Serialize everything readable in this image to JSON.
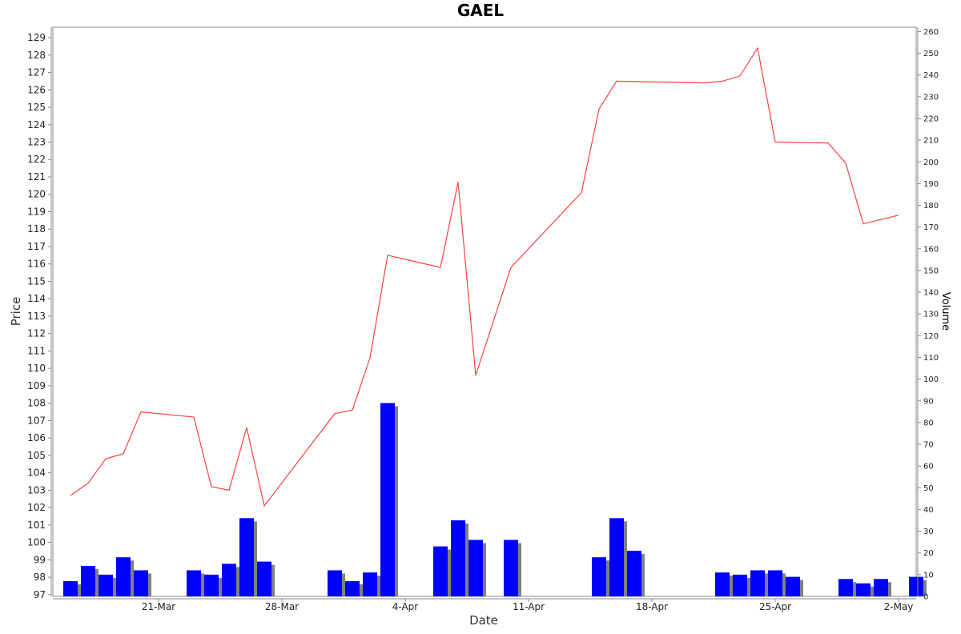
{
  "chart_data": {
    "type": "line+bar",
    "title": "GAEL",
    "xlabel": "Date",
    "ylabel": "Price",
    "y2label": "Volume",
    "ylim": [
      96.9,
      129.6
    ],
    "y2lim": [
      0,
      262
    ],
    "yticks": [
      97,
      98,
      99,
      100,
      101,
      102,
      103,
      104,
      105,
      106,
      107,
      108,
      109,
      110,
      111,
      112,
      113,
      114,
      115,
      116,
      117,
      118,
      119,
      120,
      121,
      122,
      123,
      124,
      125,
      126,
      127,
      128,
      129
    ],
    "y2ticks": [
      0,
      10,
      20,
      30,
      40,
      50,
      60,
      70,
      80,
      90,
      100,
      110,
      120,
      130,
      140,
      150,
      160,
      170,
      180,
      190,
      200,
      210,
      220,
      230,
      240,
      250,
      260
    ],
    "xrange": [
      "2019-03-15",
      "2019-05-03"
    ],
    "xticks": [
      {
        "date": "2019-03-21",
        "label": "21-Mar"
      },
      {
        "date": "2019-03-28",
        "label": "28-Mar"
      },
      {
        "date": "2019-04-04",
        "label": "4-Apr"
      },
      {
        "date": "2019-04-11",
        "label": "11-Apr"
      },
      {
        "date": "2019-04-18",
        "label": "18-Apr"
      },
      {
        "date": "2019-04-25",
        "label": "25-Apr"
      },
      {
        "date": "2019-05-02",
        "label": "2-May"
      }
    ],
    "grid": false,
    "line_color": "#ff4040",
    "bar_color": "#0000ff",
    "bar_shadow_color": "#808080",
    "series": [
      {
        "name": "Price",
        "points": [
          [
            "2019-03-16",
            102.7
          ],
          [
            "2019-03-17",
            103.4
          ],
          [
            "2019-03-18",
            104.8
          ],
          [
            "2019-03-19",
            105.1
          ],
          [
            "2019-03-20",
            107.5
          ],
          [
            "2019-03-23",
            107.2
          ],
          [
            "2019-03-24",
            103.2
          ],
          [
            "2019-03-25",
            103.0
          ],
          [
            "2019-03-26",
            106.6
          ],
          [
            "2019-03-27",
            102.1
          ],
          [
            "2019-03-31",
            107.4
          ],
          [
            "2019-04-01",
            107.6
          ],
          [
            "2019-04-02",
            110.6
          ],
          [
            "2019-04-03",
            116.5
          ],
          [
            "2019-04-06",
            115.8
          ],
          [
            "2019-04-07",
            120.7
          ],
          [
            "2019-04-08",
            109.6
          ],
          [
            "2019-04-10",
            115.8
          ],
          [
            "2019-04-14",
            120.1
          ],
          [
            "2019-04-15",
            124.9
          ],
          [
            "2019-04-16",
            126.5
          ],
          [
            "2019-04-21",
            126.4
          ],
          [
            "2019-04-22",
            126.5
          ],
          [
            "2019-04-23",
            126.8
          ],
          [
            "2019-04-24",
            128.4
          ],
          [
            "2019-04-25",
            123.0
          ],
          [
            "2019-04-28",
            122.95
          ],
          [
            "2019-04-29",
            121.8
          ],
          [
            "2019-04-30",
            118.3
          ],
          [
            "2019-05-02",
            118.8
          ]
        ]
      },
      {
        "name": "Volume",
        "points": [
          [
            "2019-03-16",
            7
          ],
          [
            "2019-03-17",
            14
          ],
          [
            "2019-03-18",
            10
          ],
          [
            "2019-03-19",
            18
          ],
          [
            "2019-03-20",
            12
          ],
          [
            "2019-03-23",
            12
          ],
          [
            "2019-03-24",
            10
          ],
          [
            "2019-03-25",
            15
          ],
          [
            "2019-03-26",
            36
          ],
          [
            "2019-03-27",
            16
          ],
          [
            "2019-03-31",
            12
          ],
          [
            "2019-04-01",
            7
          ],
          [
            "2019-04-02",
            11
          ],
          [
            "2019-04-03",
            89
          ],
          [
            "2019-04-06",
            23
          ],
          [
            "2019-04-07",
            35
          ],
          [
            "2019-04-08",
            26
          ],
          [
            "2019-04-10",
            26
          ],
          [
            "2019-04-15",
            18
          ],
          [
            "2019-04-16",
            36
          ],
          [
            "2019-04-17",
            21
          ],
          [
            "2019-04-22",
            11
          ],
          [
            "2019-04-23",
            10
          ],
          [
            "2019-04-24",
            12
          ],
          [
            "2019-04-25",
            12
          ],
          [
            "2019-04-26",
            9
          ],
          [
            "2019-04-29",
            8
          ],
          [
            "2019-04-30",
            6
          ],
          [
            "2019-05-01",
            8
          ],
          [
            "2019-05-03",
            9
          ]
        ]
      }
    ]
  }
}
